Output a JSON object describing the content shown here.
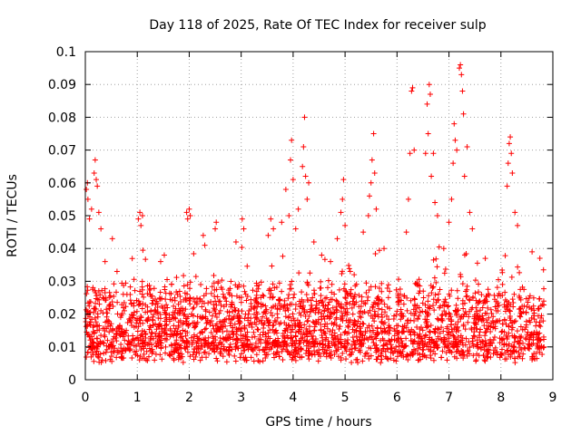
{
  "chart_data": {
    "type": "scatter",
    "title": "Day 118 of 2025, Rate Of TEC Index for receiver sulp",
    "xlabel": "GPS time / hours",
    "ylabel": "ROTI / TECUs",
    "xlim": [
      0,
      9
    ],
    "ylim": [
      0,
      0.1
    ],
    "x_ticks": [
      "0",
      "1",
      "2",
      "3",
      "4",
      "5",
      "6",
      "7",
      "8",
      "9"
    ],
    "y_ticks": [
      "0",
      "0.01",
      "0.02",
      "0.03",
      "0.04",
      "0.05",
      "0.06",
      "0.07",
      "0.08",
      "0.09",
      "0.1"
    ],
    "grid": true,
    "marker": "+",
    "color": "#ff0000",
    "series": [
      {
        "name": "ROTI",
        "points": [
          [
            0.02,
            0.058
          ],
          [
            0.04,
            0.06
          ],
          [
            0.05,
            0.055
          ],
          [
            0.08,
            0.049
          ],
          [
            0.12,
            0.052
          ],
          [
            0.17,
            0.063
          ],
          [
            0.19,
            0.067
          ],
          [
            0.21,
            0.061
          ],
          [
            0.23,
            0.059
          ],
          [
            0.26,
            0.051
          ],
          [
            0.3,
            0.046
          ],
          [
            0.38,
            0.036
          ],
          [
            0.52,
            0.043
          ],
          [
            0.61,
            0.033
          ],
          [
            1.02,
            0.049
          ],
          [
            1.05,
            0.051
          ],
          [
            1.07,
            0.047
          ],
          [
            1.1,
            0.05
          ],
          [
            1.45,
            0.036
          ],
          [
            1.52,
            0.038
          ],
          [
            1.95,
            0.051
          ],
          [
            1.97,
            0.049
          ],
          [
            2.0,
            0.052
          ],
          [
            2.02,
            0.05
          ],
          [
            2.27,
            0.044
          ],
          [
            2.3,
            0.041
          ],
          [
            2.5,
            0.046
          ],
          [
            2.52,
            0.048
          ],
          [
            2.9,
            0.042
          ],
          [
            3.02,
            0.049
          ],
          [
            3.05,
            0.046
          ],
          [
            3.52,
            0.044
          ],
          [
            3.57,
            0.049
          ],
          [
            3.62,
            0.046
          ],
          [
            3.78,
            0.048
          ],
          [
            3.86,
            0.058
          ],
          [
            3.92,
            0.05
          ],
          [
            3.95,
            0.067
          ],
          [
            3.97,
            0.073
          ],
          [
            4.0,
            0.061
          ],
          [
            4.05,
            0.046
          ],
          [
            4.1,
            0.052
          ],
          [
            4.18,
            0.065
          ],
          [
            4.2,
            0.071
          ],
          [
            4.22,
            0.08
          ],
          [
            4.24,
            0.062
          ],
          [
            4.27,
            0.055
          ],
          [
            4.3,
            0.06
          ],
          [
            4.4,
            0.042
          ],
          [
            4.55,
            0.038
          ],
          [
            4.72,
            0.036
          ],
          [
            4.85,
            0.043
          ],
          [
            4.92,
            0.051
          ],
          [
            4.95,
            0.055
          ],
          [
            4.97,
            0.061
          ],
          [
            5.0,
            0.047
          ],
          [
            5.1,
            0.033
          ],
          [
            5.35,
            0.045
          ],
          [
            5.45,
            0.05
          ],
          [
            5.47,
            0.056
          ],
          [
            5.5,
            0.06
          ],
          [
            5.52,
            0.067
          ],
          [
            5.55,
            0.075
          ],
          [
            5.57,
            0.063
          ],
          [
            5.6,
            0.052
          ],
          [
            5.75,
            0.04
          ],
          [
            6.18,
            0.045
          ],
          [
            6.22,
            0.055
          ],
          [
            6.25,
            0.069
          ],
          [
            6.28,
            0.088
          ],
          [
            6.3,
            0.089
          ],
          [
            6.33,
            0.07
          ],
          [
            6.55,
            0.069
          ],
          [
            6.58,
            0.084
          ],
          [
            6.6,
            0.075
          ],
          [
            6.62,
            0.09
          ],
          [
            6.64,
            0.087
          ],
          [
            6.66,
            0.062
          ],
          [
            6.7,
            0.069
          ],
          [
            6.73,
            0.054
          ],
          [
            6.78,
            0.05
          ],
          [
            6.9,
            0.04
          ],
          [
            7.0,
            0.048
          ],
          [
            7.05,
            0.055
          ],
          [
            7.08,
            0.066
          ],
          [
            7.1,
            0.078
          ],
          [
            7.12,
            0.073
          ],
          [
            7.15,
            0.07
          ],
          [
            7.2,
            0.095
          ],
          [
            7.22,
            0.096
          ],
          [
            7.24,
            0.093
          ],
          [
            7.26,
            0.088
          ],
          [
            7.28,
            0.081
          ],
          [
            7.3,
            0.062
          ],
          [
            7.35,
            0.071
          ],
          [
            7.4,
            0.051
          ],
          [
            7.45,
            0.046
          ],
          [
            8.12,
            0.059
          ],
          [
            8.14,
            0.066
          ],
          [
            8.16,
            0.072
          ],
          [
            8.18,
            0.074
          ],
          [
            8.2,
            0.069
          ],
          [
            8.22,
            0.063
          ],
          [
            8.27,
            0.051
          ],
          [
            8.32,
            0.047
          ],
          [
            8.6,
            0.039
          ],
          [
            8.75,
            0.037
          ]
        ],
        "baseline_range": [
          0.005,
          0.035
        ],
        "baseline_density": 2600
      }
    ]
  }
}
